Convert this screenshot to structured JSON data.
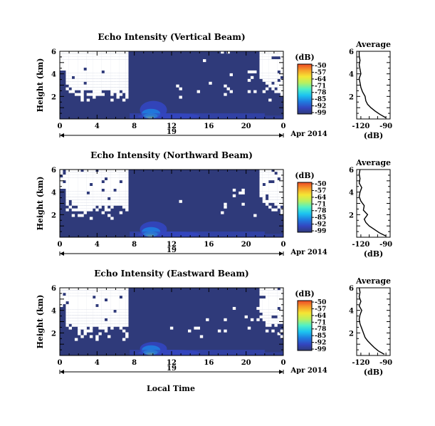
{
  "page": {
    "xlabel": "Local Time",
    "date_label": "Apr 2014",
    "day_label": "19"
  },
  "colors": {
    "background": "#2f3a7a",
    "noise": "#ffffff"
  },
  "colorbar": {
    "unit": "(dB)",
    "ticks": [
      "-50",
      "-57",
      "-64",
      "-71",
      "-78",
      "-85",
      "-92",
      "-99"
    ],
    "colormap": [
      "#2f3a7a",
      "#3346c0",
      "#1f7de0",
      "#1cc4f0",
      "#4ff0c8",
      "#b8f060",
      "#f5e634",
      "#f6a02a",
      "#ee4a25"
    ]
  },
  "average_panel": {
    "title": "Average",
    "xlabel": "(dB)",
    "xticks": [
      "-120",
      "-90"
    ],
    "xlim": [
      -125,
      -85
    ],
    "ylim": [
      0,
      6
    ]
  },
  "chart_data": [
    {
      "type": "heatmap",
      "title": "Echo Intensity (Vertical Beam)",
      "ylabel": "Height (km)",
      "xlim": [
        0,
        24
      ],
      "ylim": [
        0,
        6
      ],
      "xticks": [
        "0",
        "4",
        "8",
        "12",
        "16",
        "20",
        "0"
      ],
      "yticks": [
        "2",
        "4",
        "6"
      ],
      "clim": [
        -99,
        -50
      ],
      "average_profile": {
        "height_km": [
          0.1,
          0.4,
          0.7,
          1.0,
          1.3,
          1.6,
          2.0,
          2.4,
          2.8,
          3.2,
          3.6,
          4.0,
          4.4,
          4.8,
          5.2,
          5.6,
          6.0
        ],
        "db": [
          -90,
          -97,
          -103,
          -108,
          -112,
          -114,
          -115,
          -118,
          -120,
          -121,
          -122,
          -120,
          -121,
          -122,
          -121,
          -122,
          -122
        ]
      }
    },
    {
      "type": "heatmap",
      "title": "Echo Intensity (Northward Beam)",
      "ylabel": "Height (km)",
      "xlim": [
        0,
        24
      ],
      "ylim": [
        0,
        6
      ],
      "xticks": [
        "0",
        "4",
        "8",
        "12",
        "16",
        "20",
        "0"
      ],
      "yticks": [
        "2",
        "4",
        "6"
      ],
      "clim": [
        -99,
        -50
      ],
      "average_profile": {
        "height_km": [
          0.1,
          0.4,
          0.7,
          1.0,
          1.3,
          1.6,
          2.0,
          2.4,
          2.8,
          3.2,
          3.6,
          4.0,
          4.4,
          4.8,
          5.2,
          5.6,
          6.0
        ],
        "db": [
          -90,
          -98,
          -104,
          -110,
          -114,
          -116,
          -112,
          -117,
          -116,
          -120,
          -122,
          -121,
          -119,
          -122,
          -121,
          -122,
          -121
        ]
      }
    },
    {
      "type": "heatmap",
      "title": "Echo Intensity (Eastward Beam)",
      "ylabel": "Height (km)",
      "xlim": [
        0,
        24
      ],
      "ylim": [
        0,
        6
      ],
      "xticks": [
        "0",
        "4",
        "8",
        "12",
        "16",
        "20",
        "0"
      ],
      "yticks": [
        "2",
        "4",
        "6"
      ],
      "clim": [
        -99,
        -50
      ],
      "average_profile": {
        "height_km": [
          0.1,
          0.4,
          0.7,
          1.0,
          1.3,
          1.6,
          2.0,
          2.4,
          2.8,
          3.2,
          3.6,
          4.0,
          4.4,
          4.8,
          5.2,
          5.6,
          6.0
        ],
        "db": [
          -92,
          -99,
          -104,
          -108,
          -112,
          -115,
          -117,
          -119,
          -121,
          -122,
          -121,
          -119,
          -122,
          -120,
          -122,
          -121,
          -122
        ]
      }
    }
  ]
}
